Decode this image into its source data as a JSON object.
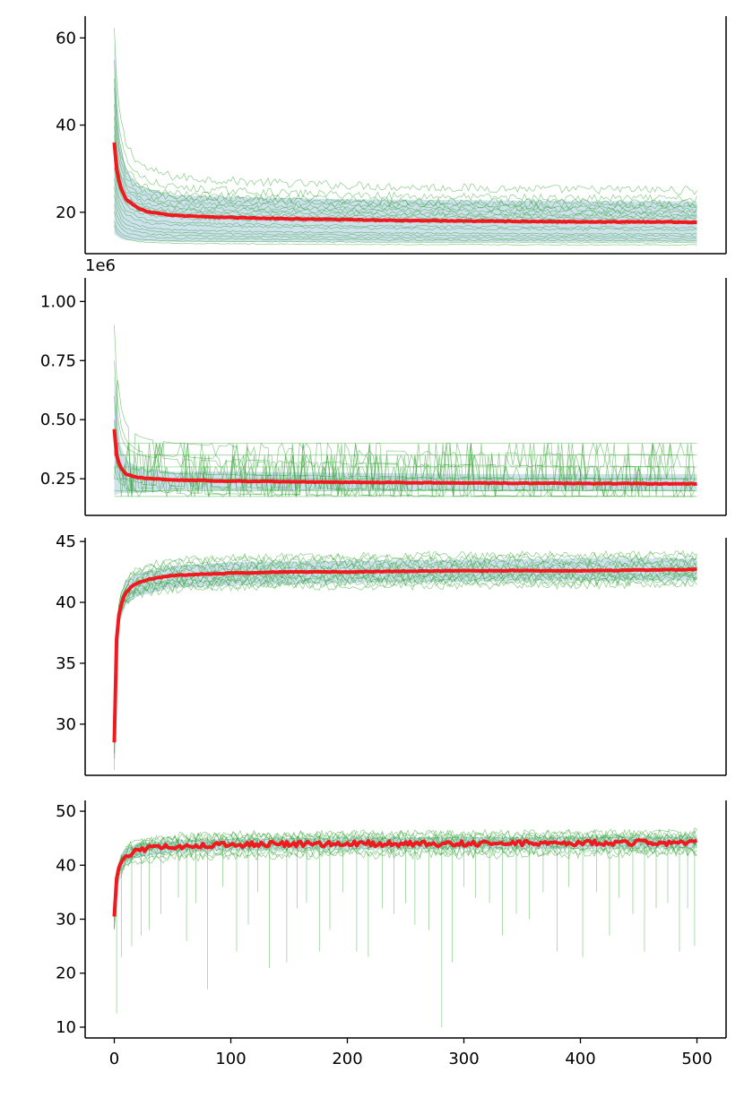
{
  "chart_data": [
    {
      "type": "line",
      "panel": 1,
      "title": "",
      "xlabel": "",
      "ylabel": "",
      "xlim": [
        -25,
        525
      ],
      "ylim": [
        10.5,
        65
      ],
      "yticks": [
        20,
        40,
        60
      ],
      "ytick_labels": [
        "20",
        "40",
        "60"
      ],
      "show_xticks": false,
      "offset_text": "",
      "grid": false,
      "legend": "none",
      "colors": {
        "runs": "#2ca02c",
        "mean": "#f0191e",
        "band": "#a6c8de"
      },
      "mean_series": {
        "x": [
          0,
          2,
          5,
          10,
          20,
          30,
          50,
          75,
          100,
          150,
          200,
          250,
          300,
          350,
          400,
          450,
          500
        ],
        "y": [
          36,
          30,
          26,
          23,
          21,
          20,
          19.3,
          19,
          18.8,
          18.5,
          18.3,
          18.1,
          18.0,
          17.9,
          17.8,
          17.8,
          17.7
        ]
      },
      "band": {
        "x": [
          0,
          5,
          10,
          20,
          50,
          100,
          200,
          300,
          400,
          500
        ],
        "lower": [
          15,
          14,
          13.6,
          13.4,
          13.2,
          13.2,
          13.2,
          13.2,
          13.2,
          13.2
        ],
        "upper": [
          60,
          36,
          30,
          26,
          24,
          23.5,
          23,
          22.8,
          22.6,
          22.5
        ]
      },
      "runs": [
        {
          "start": 62,
          "final": 25,
          "noise": 1.0
        },
        {
          "start": 55,
          "final": 23,
          "noise": 0.9
        },
        {
          "start": 50,
          "final": 22,
          "noise": 0.8
        },
        {
          "start": 48,
          "final": 21.5,
          "noise": 0.7
        },
        {
          "start": 45,
          "final": 21,
          "noise": 0.6
        },
        {
          "start": 42,
          "final": 20.5,
          "noise": 0.6
        },
        {
          "start": 40,
          "final": 20,
          "noise": 0.5
        },
        {
          "start": 38,
          "final": 19.5,
          "noise": 0.5
        },
        {
          "start": 36,
          "final": 19,
          "noise": 0.5
        },
        {
          "start": 35,
          "final": 18.5,
          "noise": 0.4
        },
        {
          "start": 33,
          "final": 18,
          "noise": 0.4
        },
        {
          "start": 32,
          "final": 17.5,
          "noise": 0.4
        },
        {
          "start": 30,
          "final": 16.5,
          "noise": 0.3
        },
        {
          "start": 28,
          "final": 16,
          "noise": 0.3
        },
        {
          "start": 26,
          "final": 15,
          "noise": 0.2
        },
        {
          "start": 24,
          "final": 14.5,
          "noise": 0.2
        },
        {
          "start": 22,
          "final": 14,
          "noise": 0.2
        },
        {
          "start": 20,
          "final": 13.5,
          "noise": 0.2
        },
        {
          "start": 18,
          "final": 13,
          "noise": 0.1
        },
        {
          "start": 17,
          "final": 12.5,
          "noise": 0.1
        }
      ]
    },
    {
      "type": "line",
      "panel": 2,
      "title": "",
      "xlabel": "",
      "ylabel": "",
      "xlim": [
        -25,
        525
      ],
      "ylim": [
        0.095,
        1.1
      ],
      "yticks": [
        0.25,
        0.5,
        0.75,
        1.0
      ],
      "ytick_labels": [
        "0.25",
        "0.50",
        "0.75",
        "1.00"
      ],
      "show_xticks": false,
      "offset_text": "1e6",
      "grid": false,
      "legend": "none",
      "colors": {
        "runs": "#2ca02c",
        "mean": "#f0191e",
        "band": "#a6c8de"
      },
      "mean_series": {
        "x": [
          0,
          2,
          5,
          10,
          20,
          30,
          50,
          100,
          200,
          300,
          400,
          500
        ],
        "y": [
          0.46,
          0.35,
          0.3,
          0.27,
          0.255,
          0.25,
          0.245,
          0.24,
          0.235,
          0.232,
          0.23,
          0.228
        ]
      },
      "band": {
        "x": [
          0,
          5,
          10,
          20,
          50,
          100,
          200,
          300,
          400,
          500
        ],
        "lower": [
          0.18,
          0.19,
          0.19,
          0.19,
          0.2,
          0.2,
          0.2,
          0.2,
          0.2,
          0.2
        ],
        "upper": [
          0.7,
          0.4,
          0.33,
          0.3,
          0.28,
          0.28,
          0.275,
          0.27,
          0.27,
          0.27
        ]
      },
      "levels": [
        0.175,
        0.2,
        0.25,
        0.3,
        0.35,
        0.4
      ],
      "runs": [
        {
          "start": 1.05,
          "final": 0.35,
          "noise": 0.05
        },
        {
          "start": 0.9,
          "final": 0.3,
          "noise": 0.05
        },
        {
          "start": 0.75,
          "final": 0.3,
          "noise": 0.04
        },
        {
          "start": 0.6,
          "final": 0.25,
          "noise": 0.04
        },
        {
          "start": 0.55,
          "final": 0.25,
          "noise": 0.03
        },
        {
          "start": 0.5,
          "final": 0.2,
          "noise": 0.03
        },
        {
          "start": 0.45,
          "final": 0.2,
          "noise": 0.03
        },
        {
          "start": 0.4,
          "final": 0.175,
          "noise": 0.02
        },
        {
          "start": 0.35,
          "final": 0.175,
          "noise": 0.02
        },
        {
          "start": 0.3,
          "final": 0.2,
          "noise": 0.02
        }
      ]
    },
    {
      "type": "line",
      "panel": 3,
      "title": "",
      "xlabel": "",
      "ylabel": "",
      "xlim": [
        -25,
        525
      ],
      "ylim": [
        25.8,
        45.3
      ],
      "yticks": [
        30,
        35,
        40,
        45
      ],
      "ytick_labels": [
        "30",
        "35",
        "40",
        "45"
      ],
      "show_xticks": false,
      "offset_text": "",
      "grid": false,
      "legend": "none",
      "colors": {
        "runs": "#2ca02c",
        "mean": "#f0191e",
        "band": "#a6c8de"
      },
      "mean_series": {
        "x": [
          0,
          1,
          2,
          3,
          5,
          8,
          10,
          15,
          20,
          30,
          50,
          75,
          100,
          150,
          200,
          300,
          400,
          500
        ],
        "y": [
          28.5,
          34,
          37,
          38.5,
          39.5,
          40.4,
          40.8,
          41.3,
          41.6,
          41.9,
          42.2,
          42.3,
          42.4,
          42.5,
          42.5,
          42.6,
          42.6,
          42.7
        ]
      },
      "band": {
        "x": [
          0,
          5,
          10,
          20,
          50,
          100,
          200,
          300,
          400,
          500
        ],
        "lower": [
          27,
          38.5,
          39.8,
          40.5,
          41.2,
          41.4,
          41.6,
          41.7,
          41.8,
          41.8
        ],
        "upper": [
          30,
          40.5,
          41.8,
          42.4,
          43.0,
          43.3,
          43.4,
          43.5,
          43.6,
          43.6
        ]
      },
      "runs": [
        {
          "start": 27,
          "final": 44,
          "noise": 0.35
        },
        {
          "start": 27.5,
          "final": 43.8,
          "noise": 0.35
        },
        {
          "start": 28,
          "final": 43.5,
          "noise": 0.35
        },
        {
          "start": 28.2,
          "final": 43.3,
          "noise": 0.35
        },
        {
          "start": 28.4,
          "final": 43.1,
          "noise": 0.35
        },
        {
          "start": 28.6,
          "final": 42.9,
          "noise": 0.35
        },
        {
          "start": 28.8,
          "final": 42.7,
          "noise": 0.35
        },
        {
          "start": 29,
          "final": 42.5,
          "noise": 0.35
        },
        {
          "start": 29.2,
          "final": 42.3,
          "noise": 0.35
        },
        {
          "start": 29.4,
          "final": 42.1,
          "noise": 0.35
        },
        {
          "start": 29.6,
          "final": 41.9,
          "noise": 0.35
        },
        {
          "start": 29.8,
          "final": 41.7,
          "noise": 0.35
        },
        {
          "start": 30,
          "final": 41.5,
          "noise": 0.35
        },
        {
          "start": 26.5,
          "final": 42.2,
          "noise": 0.35
        }
      ]
    },
    {
      "type": "line",
      "panel": 4,
      "title": "",
      "xlabel": "",
      "ylabel": "",
      "xlim": [
        -25,
        525
      ],
      "ylim": [
        8,
        52
      ],
      "yticks": [
        10,
        20,
        30,
        40,
        50
      ],
      "ytick_labels": [
        "10",
        "20",
        "30",
        "40",
        "50"
      ],
      "show_xticks": true,
      "xticks": [
        0,
        100,
        200,
        300,
        400,
        500
      ],
      "xtick_labels": [
        "0",
        "100",
        "200",
        "300",
        "400",
        "500"
      ],
      "offset_text": "",
      "grid": false,
      "legend": "none",
      "colors": {
        "runs": "#2ca02c",
        "mean": "#f0191e",
        "band": "#a6c8de"
      },
      "mean_series": {
        "x": [
          0,
          1,
          2,
          3,
          5,
          8,
          10,
          15,
          20,
          30,
          50,
          75,
          100,
          150,
          200,
          300,
          400,
          500
        ],
        "y": [
          30.5,
          35,
          37.5,
          39,
          40.2,
          41.2,
          41.7,
          42.3,
          42.7,
          43.1,
          43.5,
          43.7,
          43.8,
          43.9,
          44.0,
          44.0,
          44.1,
          44.2
        ]
      },
      "band": {
        "x": [
          0,
          5,
          10,
          20,
          50,
          100,
          200,
          300,
          400,
          500
        ],
        "lower": [
          29,
          38.5,
          40.3,
          41.4,
          42.4,
          42.7,
          42.9,
          43.0,
          43.0,
          43.1
        ],
        "upper": [
          32,
          41.8,
          43.0,
          44.0,
          44.6,
          44.9,
          45.1,
          45.2,
          45.2,
          45.3
        ]
      },
      "dips": [
        {
          "x": 2,
          "y": 12.5
        },
        {
          "x": 6,
          "y": 23
        },
        {
          "x": 15,
          "y": 25
        },
        {
          "x": 23,
          "y": 27
        },
        {
          "x": 30,
          "y": 28
        },
        {
          "x": 40,
          "y": 31
        },
        {
          "x": 55,
          "y": 34
        },
        {
          "x": 62,
          "y": 26
        },
        {
          "x": 70,
          "y": 33
        },
        {
          "x": 80,
          "y": 17
        },
        {
          "x": 93,
          "y": 36
        },
        {
          "x": 105,
          "y": 24
        },
        {
          "x": 115,
          "y": 29
        },
        {
          "x": 123,
          "y": 35
        },
        {
          "x": 133,
          "y": 21
        },
        {
          "x": 148,
          "y": 22
        },
        {
          "x": 157,
          "y": 32
        },
        {
          "x": 165,
          "y": 33
        },
        {
          "x": 176,
          "y": 24
        },
        {
          "x": 185,
          "y": 28
        },
        {
          "x": 196,
          "y": 35
        },
        {
          "x": 208,
          "y": 24
        },
        {
          "x": 218,
          "y": 23
        },
        {
          "x": 230,
          "y": 32
        },
        {
          "x": 240,
          "y": 31
        },
        {
          "x": 250,
          "y": 33
        },
        {
          "x": 258,
          "y": 29
        },
        {
          "x": 270,
          "y": 28
        },
        {
          "x": 281,
          "y": 10
        },
        {
          "x": 290,
          "y": 22
        },
        {
          "x": 300,
          "y": 36
        },
        {
          "x": 310,
          "y": 34
        },
        {
          "x": 322,
          "y": 33
        },
        {
          "x": 333,
          "y": 27
        },
        {
          "x": 345,
          "y": 31
        },
        {
          "x": 356,
          "y": 30
        },
        {
          "x": 368,
          "y": 35
        },
        {
          "x": 380,
          "y": 24
        },
        {
          "x": 390,
          "y": 36
        },
        {
          "x": 402,
          "y": 23
        },
        {
          "x": 414,
          "y": 35
        },
        {
          "x": 425,
          "y": 27
        },
        {
          "x": 433,
          "y": 34
        },
        {
          "x": 445,
          "y": 31
        },
        {
          "x": 455,
          "y": 24
        },
        {
          "x": 465,
          "y": 32
        },
        {
          "x": 475,
          "y": 33
        },
        {
          "x": 485,
          "y": 24
        },
        {
          "x": 492,
          "y": 32
        },
        {
          "x": 498,
          "y": 25
        }
      ],
      "runs": [
        {
          "start": 30,
          "final": 46,
          "noise": 0.9
        },
        {
          "start": 30.5,
          "final": 45.5,
          "noise": 0.9
        },
        {
          "start": 31,
          "final": 45,
          "noise": 0.9
        },
        {
          "start": 31.5,
          "final": 44.6,
          "noise": 0.9
        },
        {
          "start": 32,
          "final": 44.2,
          "noise": 0.9
        },
        {
          "start": 30,
          "final": 43.8,
          "noise": 0.9
        },
        {
          "start": 29.5,
          "final": 43.4,
          "noise": 0.9
        },
        {
          "start": 29,
          "final": 43,
          "noise": 0.9
        },
        {
          "start": 28.5,
          "final": 42.6,
          "noise": 0.9
        },
        {
          "start": 28,
          "final": 42.2,
          "noise": 0.9
        },
        {
          "start": 31,
          "final": 44.8,
          "noise": 0.9
        },
        {
          "start": 30,
          "final": 45.8,
          "noise": 0.9
        }
      ]
    }
  ]
}
